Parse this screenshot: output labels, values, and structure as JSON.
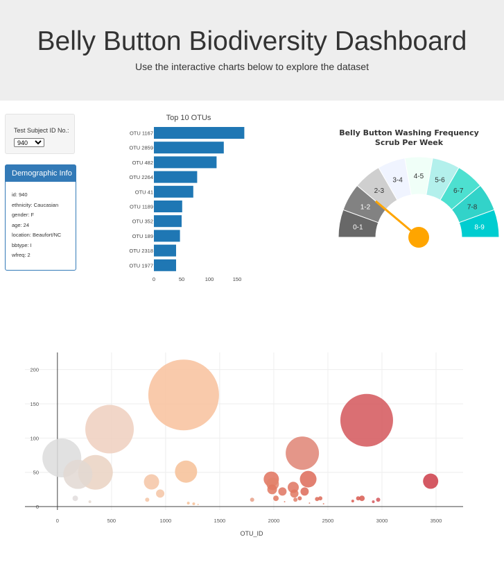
{
  "header": {
    "title": "Belly Button Biodiversity Dashboard",
    "subtitle": "Use the interactive charts below to explore the dataset"
  },
  "selector": {
    "label": "Test Subject ID No.:",
    "selected": "940"
  },
  "demographics": {
    "title": "Demographic Info",
    "rows": [
      "id: 940",
      "ethnicity: Caucasian",
      "gender: F",
      "age: 24",
      "location: Beaufort/NC",
      "bbtype: I",
      "wfreq: 2"
    ]
  },
  "chart_data": [
    {
      "type": "bar",
      "orientation": "horizontal",
      "title": "Top 10 OTUs",
      "categories": [
        "OTU 1167",
        "OTU 2859",
        "OTU 482",
        "OTU 2264",
        "OTU 41",
        "OTU 1189",
        "OTU 352",
        "OTU 189",
        "OTU 2318",
        "OTU 1977"
      ],
      "values": [
        163,
        126,
        113,
        78,
        71,
        51,
        50,
        47,
        40,
        40
      ],
      "xticks": [
        "0",
        "50",
        "100",
        "150"
      ],
      "xlim": [
        0,
        170
      ],
      "color": "#1f77b4"
    },
    {
      "type": "gauge",
      "title": "Belly Button Washing Frequency",
      "subtitle": "Scrub Per Week",
      "segments": [
        "0-1",
        "1-2",
        "2-3",
        "3-4",
        "4-5",
        "5-6",
        "6-7",
        "7-8",
        "8-9"
      ],
      "colors": [
        "#686868",
        "#828282",
        "#cfcfcf",
        "#f0f4ff",
        "#f0fff8",
        "#b3f0ec",
        "#4de0d0",
        "#32d3c9",
        "#00cdd0"
      ],
      "value": 2,
      "range": [
        0,
        9
      ],
      "needle_color": "#ffa500"
    },
    {
      "type": "scatter",
      "mode": "bubble",
      "xlabel": "OTU_ID",
      "xlim": [
        -300,
        3750
      ],
      "ylim": [
        -5,
        225
      ],
      "xticks": [
        0,
        500,
        1000,
        1500,
        2000,
        2500,
        3000,
        3500
      ],
      "yticks": [
        0,
        50,
        100,
        150,
        200
      ],
      "grid": true,
      "points": [
        {
          "x": 41,
          "y": 71,
          "c": "#dcdcdc"
        },
        {
          "x": 189,
          "y": 47,
          "c": "#e2d8d2"
        },
        {
          "x": 352,
          "y": 50,
          "c": "#ead2c2"
        },
        {
          "x": 482,
          "y": 113,
          "c": "#efcfbe"
        },
        {
          "x": 165,
          "y": 12,
          "c": "#e0dcdc"
        },
        {
          "x": 300,
          "y": 7,
          "c": "#e4d8d0"
        },
        {
          "x": 870,
          "y": 36,
          "c": "#f5c4a4"
        },
        {
          "x": 950,
          "y": 19,
          "c": "#f5c4a4"
        },
        {
          "x": 830,
          "y": 10,
          "c": "#f5c4a4"
        },
        {
          "x": 1167,
          "y": 163,
          "c": "#f8c19c"
        },
        {
          "x": 1189,
          "y": 51,
          "c": "#f6bf97"
        },
        {
          "x": 1210,
          "y": 5,
          "c": "#f6bf97"
        },
        {
          "x": 1260,
          "y": 4,
          "c": "#f6bf97"
        },
        {
          "x": 1300,
          "y": 3,
          "c": "#f6bf97"
        },
        {
          "x": 1800,
          "y": 10,
          "c": "#e8a088"
        },
        {
          "x": 1977,
          "y": 40,
          "c": "#e0725d"
        },
        {
          "x": 1990,
          "y": 33,
          "c": "#e3846c"
        },
        {
          "x": 1985,
          "y": 25,
          "c": "#e07860"
        },
        {
          "x": 2020,
          "y": 12,
          "c": "#e07860"
        },
        {
          "x": 2080,
          "y": 22,
          "c": "#df7460"
        },
        {
          "x": 2180,
          "y": 28,
          "c": "#df7460"
        },
        {
          "x": 2190,
          "y": 19,
          "c": "#e07860"
        },
        {
          "x": 2240,
          "y": 12,
          "c": "#dd6c5a"
        },
        {
          "x": 2200,
          "y": 10,
          "c": "#e0806a"
        },
        {
          "x": 2264,
          "y": 78,
          "c": "#df8474"
        },
        {
          "x": 2318,
          "y": 40,
          "c": "#dd6a58"
        },
        {
          "x": 2285,
          "y": 22,
          "c": "#dd6a58"
        },
        {
          "x": 2400,
          "y": 11,
          "c": "#dc6a58"
        },
        {
          "x": 2430,
          "y": 12,
          "c": "#dc6a58"
        },
        {
          "x": 2100,
          "y": 7,
          "c": "#e0806a"
        },
        {
          "x": 2330,
          "y": 5,
          "c": "#e0806a"
        },
        {
          "x": 2460,
          "y": 4,
          "c": "#e0806a"
        },
        {
          "x": 2730,
          "y": 8,
          "c": "#d85a50"
        },
        {
          "x": 2780,
          "y": 12,
          "c": "#d85a50"
        },
        {
          "x": 2815,
          "y": 12,
          "c": "#d85a50"
        },
        {
          "x": 2859,
          "y": 126,
          "c": "#d4565a"
        },
        {
          "x": 2920,
          "y": 7,
          "c": "#d4565a"
        },
        {
          "x": 2965,
          "y": 10,
          "c": "#d4565a"
        },
        {
          "x": 3450,
          "y": 37,
          "c": "#cc3c48"
        }
      ],
      "sizes": [
        28,
        21,
        25,
        35,
        4,
        2,
        11,
        6,
        3,
        51,
        16,
        2,
        2,
        1,
        3,
        11,
        9,
        7,
        4,
        6,
        8,
        6,
        3,
        3,
        24,
        12,
        6,
        3,
        3,
        1,
        1,
        1,
        2,
        3,
        4,
        38,
        2,
        3,
        11
      ]
    }
  ]
}
